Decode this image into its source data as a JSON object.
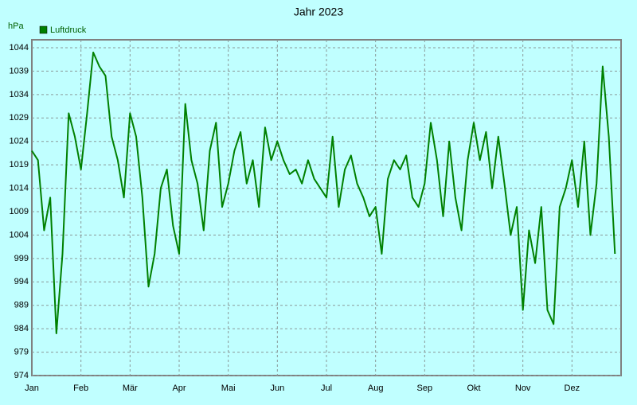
{
  "chart_data": {
    "type": "line",
    "title": "Jahr 2023",
    "y_label": "hPa",
    "categories": [
      "Jan",
      null,
      null,
      null,
      null,
      null,
      null,
      null,
      "Feb",
      null,
      null,
      null,
      null,
      null,
      null,
      null,
      "Mär",
      null,
      null,
      null,
      null,
      null,
      null,
      null,
      "Apr",
      null,
      null,
      null,
      null,
      null,
      null,
      null,
      "Mai",
      null,
      null,
      null,
      null,
      null,
      null,
      null,
      "Jun",
      null,
      null,
      null,
      null,
      null,
      null,
      null,
      "Jul",
      null,
      null,
      null,
      null,
      null,
      null,
      null,
      "Aug",
      null,
      null,
      null,
      null,
      null,
      null,
      null,
      "Sep",
      null,
      null,
      null,
      null,
      null,
      null,
      null,
      "Okt",
      null,
      null,
      null,
      null,
      null,
      null,
      null,
      "Nov",
      null,
      null,
      null,
      null,
      null,
      null,
      null,
      "Dez",
      null,
      null,
      null,
      null,
      null,
      null,
      null
    ],
    "series": [
      {
        "name": "Luftdruck",
        "color": "#008000",
        "values": [
          1022,
          1020,
          1005,
          1012,
          983,
          1000,
          1030,
          1025,
          1018,
          1030,
          1043,
          1040,
          1038,
          1025,
          1020,
          1012,
          1030,
          1025,
          1012,
          993,
          1000,
          1014,
          1018,
          1006,
          1000,
          1032,
          1020,
          1015,
          1005,
          1022,
          1028,
          1010,
          1015,
          1022,
          1026,
          1015,
          1020,
          1010,
          1027,
          1020,
          1024,
          1020,
          1017,
          1018,
          1015,
          1020,
          1016,
          1014,
          1012,
          1025,
          1010,
          1018,
          1021,
          1015,
          1012,
          1008,
          1010,
          1000,
          1016,
          1020,
          1018,
          1021,
          1012,
          1010,
          1015,
          1028,
          1020,
          1008,
          1024,
          1012,
          1005,
          1020,
          1028,
          1020,
          1026,
          1014,
          1025,
          1015,
          1004,
          1010,
          988,
          1005,
          998,
          1010,
          988,
          985,
          1010,
          1014,
          1020,
          1010,
          1024,
          1004,
          1015,
          1040,
          1025,
          1000
        ]
      }
    ],
    "ylim": [
      974,
      1044
    ],
    "yticks": [
      974,
      979,
      984,
      989,
      994,
      999,
      1004,
      1009,
      1014,
      1019,
      1024,
      1029,
      1034,
      1039,
      1044
    ],
    "grid": true
  }
}
